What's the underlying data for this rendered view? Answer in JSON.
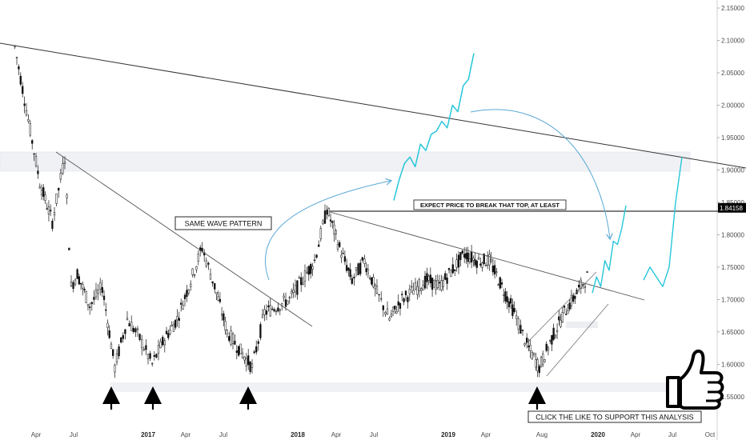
{
  "chart_data": {
    "type": "candlestick",
    "y_axis": {
      "range": [
        1.535,
        2.155
      ],
      "ticks": [
        "2.15000",
        "2.10000",
        "2.05000",
        "2.00000",
        "1.95000",
        "1.90000",
        "1.85000",
        "1.80000",
        "1.75000",
        "1.70000",
        "1.65000",
        "1.60000",
        "1.55000"
      ],
      "current_price_label": "1.84158",
      "current_price": 1.84158
    },
    "x_axis": {
      "ticks": [
        {
          "label": "Apr",
          "bold": false
        },
        {
          "label": "Jul",
          "bold": false
        },
        {
          "label": "2017",
          "bold": true
        },
        {
          "label": "Apr",
          "bold": false
        },
        {
          "label": "Jul",
          "bold": false
        },
        {
          "label": "2018",
          "bold": true
        },
        {
          "label": "Apr",
          "bold": false
        },
        {
          "label": "Jul",
          "bold": false
        },
        {
          "label": "2019",
          "bold": true
        },
        {
          "label": "Apr",
          "bold": false
        },
        {
          "label": "Aug",
          "bold": false
        },
        {
          "label": "2020",
          "bold": true
        },
        {
          "label": "Apr",
          "bold": false
        },
        {
          "label": "Jul",
          "bold": false
        },
        {
          "label": "Oct",
          "bold": false
        }
      ]
    },
    "anchor_prices": [
      {
        "date": "2016-02",
        "price": 2.09
      },
      {
        "date": "2016-04",
        "price": 1.88
      },
      {
        "date": "2016-05",
        "price": 1.82
      },
      {
        "date": "2016-06",
        "price": 1.92
      },
      {
        "date": "2016-06b",
        "price": 1.72
      },
      {
        "date": "2016-07",
        "price": 1.74
      },
      {
        "date": "2016-08",
        "price": 1.69
      },
      {
        "date": "2016-09",
        "price": 1.72
      },
      {
        "date": "2016-10",
        "price": 1.595
      },
      {
        "date": "2016-11",
        "price": 1.67
      },
      {
        "date": "2016-12",
        "price": 1.64
      },
      {
        "date": "2017-01",
        "price": 1.6
      },
      {
        "date": "2017-02",
        "price": 1.64
      },
      {
        "date": "2017-03",
        "price": 1.67
      },
      {
        "date": "2017-05",
        "price": 1.78
      },
      {
        "date": "2017-06",
        "price": 1.72
      },
      {
        "date": "2017-07",
        "price": 1.65
      },
      {
        "date": "2017-09",
        "price": 1.595
      },
      {
        "date": "2017-10",
        "price": 1.68
      },
      {
        "date": "2017-12",
        "price": 1.7
      },
      {
        "date": "2018-02",
        "price": 1.76
      },
      {
        "date": "2018-03",
        "price": 1.84
      },
      {
        "date": "2018-04",
        "price": 1.78
      },
      {
        "date": "2018-05",
        "price": 1.73
      },
      {
        "date": "2018-06",
        "price": 1.76
      },
      {
        "date": "2018-07",
        "price": 1.71
      },
      {
        "date": "2018-08",
        "price": 1.67
      },
      {
        "date": "2018-09",
        "price": 1.7
      },
      {
        "date": "2018-11",
        "price": 1.73
      },
      {
        "date": "2018-12",
        "price": 1.72
      },
      {
        "date": "2019-02",
        "price": 1.77
      },
      {
        "date": "2019-03",
        "price": 1.76
      },
      {
        "date": "2019-04",
        "price": 1.76
      },
      {
        "date": "2019-05",
        "price": 1.72
      },
      {
        "date": "2019-06",
        "price": 1.68
      },
      {
        "date": "2019-07",
        "price": 1.63
      },
      {
        "date": "2019-08",
        "price": 1.595
      },
      {
        "date": "2019-09",
        "price": 1.64
      },
      {
        "date": "2019-10",
        "price": 1.68
      },
      {
        "date": "2019-11",
        "price": 1.71
      },
      {
        "date": "2019-12",
        "price": 1.74
      }
    ],
    "projection_upper_prices": [
      1.853,
      1.885,
      1.91,
      1.92,
      1.905,
      1.94,
      1.93,
      1.955,
      1.96,
      1.975,
      1.965,
      2.0,
      1.99,
      2.03,
      2.04,
      2.08
    ],
    "projection_right_prices": [
      1.71,
      1.735,
      1.72,
      1.76,
      1.745,
      1.79,
      1.785,
      1.81,
      1.845
    ],
    "projection_far_prices": [
      1.73,
      1.75,
      1.735,
      1.72,
      1.75,
      1.85,
      1.92
    ],
    "annotations": [
      {
        "id": "same-wave",
        "text": "SAME WAVE PATTERN"
      },
      {
        "id": "expect-break",
        "text": "EXPECT PRICE TO BREAK THAT TOP, AT LEAST"
      },
      {
        "id": "click-like",
        "text": "CLICK THE LIKE TO SUPPORT THIS ANALYSIS"
      }
    ],
    "colors": {
      "candle": "#111111",
      "projection": "#26c6da",
      "projection_arrow": "#5aa9d6",
      "trendline": "#333333",
      "zone": "#f0f1f5",
      "axis_text": "#4a4a4a"
    },
    "grid": false
  }
}
